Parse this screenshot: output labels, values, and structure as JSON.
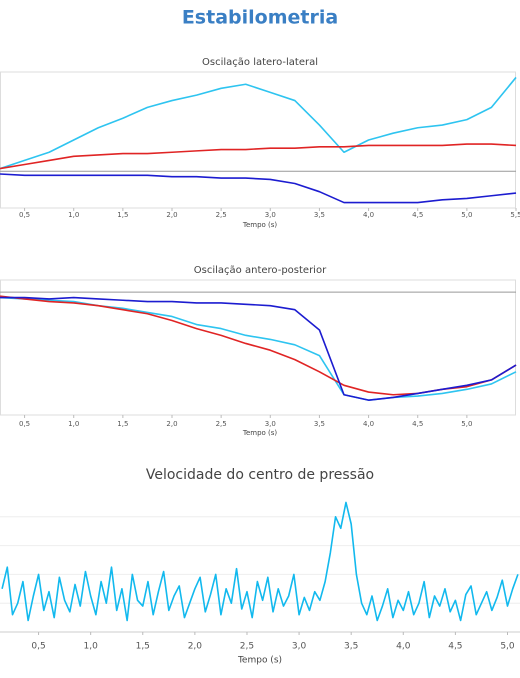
{
  "page_title": "Estabilometria",
  "chart_data": [
    {
      "type": "line",
      "title": "Oscilação latero-lateral",
      "xlabel": "Tempo (s)",
      "x": [
        0.25,
        0.5,
        0.75,
        1.0,
        1.25,
        1.5,
        1.75,
        2.0,
        2.25,
        2.5,
        2.75,
        3.0,
        3.25,
        3.5,
        3.75,
        4.0,
        4.25,
        4.5,
        4.75,
        5.0,
        5.25,
        5.5
      ],
      "series": [
        {
          "color": "#2ec4f0",
          "values": [
            29,
            35,
            41,
            50,
            59,
            66,
            74,
            79,
            83,
            88,
            91,
            85,
            79,
            61,
            41,
            50,
            55,
            59,
            61,
            65,
            74,
            96
          ]
        },
        {
          "color": "#e02424",
          "values": [
            29,
            32,
            35,
            38,
            39,
            40,
            40,
            41,
            42,
            43,
            43,
            44,
            44,
            45,
            45,
            46,
            46,
            46,
            46,
            47,
            47,
            46
          ]
        },
        {
          "color": "#1c1cd0",
          "values": [
            25,
            24,
            24,
            24,
            24,
            24,
            24,
            23,
            23,
            22,
            22,
            21,
            18,
            12,
            4,
            4,
            4,
            4,
            6,
            7,
            9,
            11
          ]
        }
      ],
      "baseline": 27,
      "xlim": [
        0.25,
        5.5
      ],
      "ylim": [
        0,
        100
      ],
      "xticks": [
        {
          "value": 0.5,
          "label": "0,5"
        },
        {
          "value": 1.0,
          "label": "1,0"
        },
        {
          "value": 1.5,
          "label": "1,5"
        },
        {
          "value": 2.0,
          "label": "2,0"
        },
        {
          "value": 2.5,
          "label": "2,5"
        },
        {
          "value": 3.0,
          "label": "3,0"
        },
        {
          "value": 3.5,
          "label": "3,5"
        },
        {
          "value": 4.0,
          "label": "4,0"
        },
        {
          "value": 4.5,
          "label": "4,5"
        },
        {
          "value": 5.0,
          "label": "5,0"
        },
        {
          "value": 5.5,
          "label": "5,5"
        }
      ]
    },
    {
      "type": "line",
      "title": "Oscilação antero-posterior",
      "xlabel": "Tempo (s)",
      "x": [
        0.25,
        0.5,
        0.75,
        1.0,
        1.25,
        1.5,
        1.75,
        2.0,
        2.25,
        2.5,
        2.75,
        3.0,
        3.25,
        3.5,
        3.75,
        4.0,
        4.25,
        4.5,
        4.75,
        5.0,
        5.25,
        5.5
      ],
      "series": [
        {
          "color": "#2ec4f0",
          "values": [
            87,
            86,
            85,
            84,
            81,
            79,
            76,
            73,
            67,
            64,
            59,
            56,
            52,
            44,
            15,
            11,
            13,
            14,
            16,
            19,
            23,
            32
          ]
        },
        {
          "color": "#e02424",
          "values": [
            88,
            86,
            84,
            83,
            81,
            78,
            75,
            70,
            64,
            59,
            53,
            48,
            41,
            32,
            22,
            17,
            15,
            16,
            19,
            21,
            26,
            37
          ]
        },
        {
          "color": "#1c1cd0",
          "values": [
            87,
            87,
            86,
            87,
            86,
            85,
            84,
            84,
            83,
            83,
            82,
            81,
            78,
            63,
            15,
            11,
            13,
            16,
            19,
            22,
            26,
            37
          ]
        }
      ],
      "baseline": 91,
      "xlim": [
        0.25,
        5.5
      ],
      "ylim": [
        0,
        100
      ],
      "xticks": [
        {
          "value": 0.5,
          "label": "0,5"
        },
        {
          "value": 1.0,
          "label": "1,0"
        },
        {
          "value": 1.5,
          "label": "1,5"
        },
        {
          "value": 2.0,
          "label": "2,0"
        },
        {
          "value": 2.5,
          "label": "2,5"
        },
        {
          "value": 3.0,
          "label": "3,0"
        },
        {
          "value": 3.5,
          "label": "3,5"
        },
        {
          "value": 4.0,
          "label": "4,0"
        },
        {
          "value": 4.5,
          "label": "4,5"
        },
        {
          "value": 5.0,
          "label": "5,0"
        }
      ]
    },
    {
      "type": "line",
      "title": "Velocidade do centro de pressão",
      "xlabel": "Tempo (s)",
      "x": [
        0.15,
        0.2,
        0.25,
        0.3,
        0.35,
        0.4,
        0.45,
        0.5,
        0.55,
        0.6,
        0.65,
        0.7,
        0.75,
        0.8,
        0.85,
        0.9,
        0.95,
        1.0,
        1.05,
        1.1,
        1.15,
        1.2,
        1.25,
        1.3,
        1.35,
        1.4,
        1.45,
        1.5,
        1.55,
        1.6,
        1.65,
        1.7,
        1.75,
        1.8,
        1.85,
        1.9,
        1.95,
        2.0,
        2.05,
        2.1,
        2.15,
        2.2,
        2.25,
        2.3,
        2.35,
        2.4,
        2.45,
        2.5,
        2.55,
        2.6,
        2.65,
        2.7,
        2.75,
        2.8,
        2.85,
        2.9,
        2.95,
        3.0,
        3.05,
        3.1,
        3.15,
        3.2,
        3.25,
        3.3,
        3.35,
        3.4,
        3.45,
        3.5,
        3.55,
        3.6,
        3.65,
        3.7,
        3.75,
        3.8,
        3.85,
        3.9,
        3.95,
        4.0,
        4.05,
        4.1,
        4.15,
        4.2,
        4.25,
        4.3,
        4.35,
        4.4,
        4.45,
        4.5,
        4.55,
        4.6,
        4.65,
        4.7,
        4.75,
        4.8,
        4.85,
        4.9,
        4.95,
        5.0,
        5.05,
        5.1
      ],
      "series": [
        {
          "color": "#12b9ee",
          "values": [
            30,
            45,
            12,
            20,
            35,
            8,
            25,
            40,
            15,
            28,
            10,
            38,
            22,
            14,
            33,
            18,
            42,
            25,
            12,
            35,
            20,
            45,
            15,
            30,
            8,
            40,
            22,
            18,
            35,
            12,
            28,
            42,
            15,
            25,
            32,
            10,
            20,
            30,
            38,
            14,
            26,
            40,
            12,
            30,
            20,
            44,
            16,
            28,
            10,
            35,
            22,
            38,
            14,
            30,
            18,
            25,
            40,
            12,
            24,
            15,
            28,
            22,
            35,
            55,
            80,
            72,
            90,
            75,
            40,
            20,
            12,
            25,
            8,
            18,
            30,
            10,
            22,
            15,
            28,
            12,
            20,
            35,
            10,
            25,
            18,
            30,
            14,
            22,
            8,
            26,
            32,
            12,
            20,
            28,
            15,
            24,
            36,
            18,
            30,
            40
          ]
        }
      ],
      "xlim": [
        0.13,
        5.12
      ],
      "ylim": [
        0,
        100
      ],
      "xticks": [
        {
          "value": 0.5,
          "label": "0,5"
        },
        {
          "value": 1.0,
          "label": "1,0"
        },
        {
          "value": 1.5,
          "label": "1,5"
        },
        {
          "value": 2.0,
          "label": "2,0"
        },
        {
          "value": 2.5,
          "label": "2,5"
        },
        {
          "value": 3.0,
          "label": "3,0"
        },
        {
          "value": 3.5,
          "label": "3,5"
        },
        {
          "value": 4.0,
          "label": "4,0"
        },
        {
          "value": 4.5,
          "label": "4,5"
        },
        {
          "value": 5.0,
          "label": "5,0"
        }
      ]
    }
  ]
}
